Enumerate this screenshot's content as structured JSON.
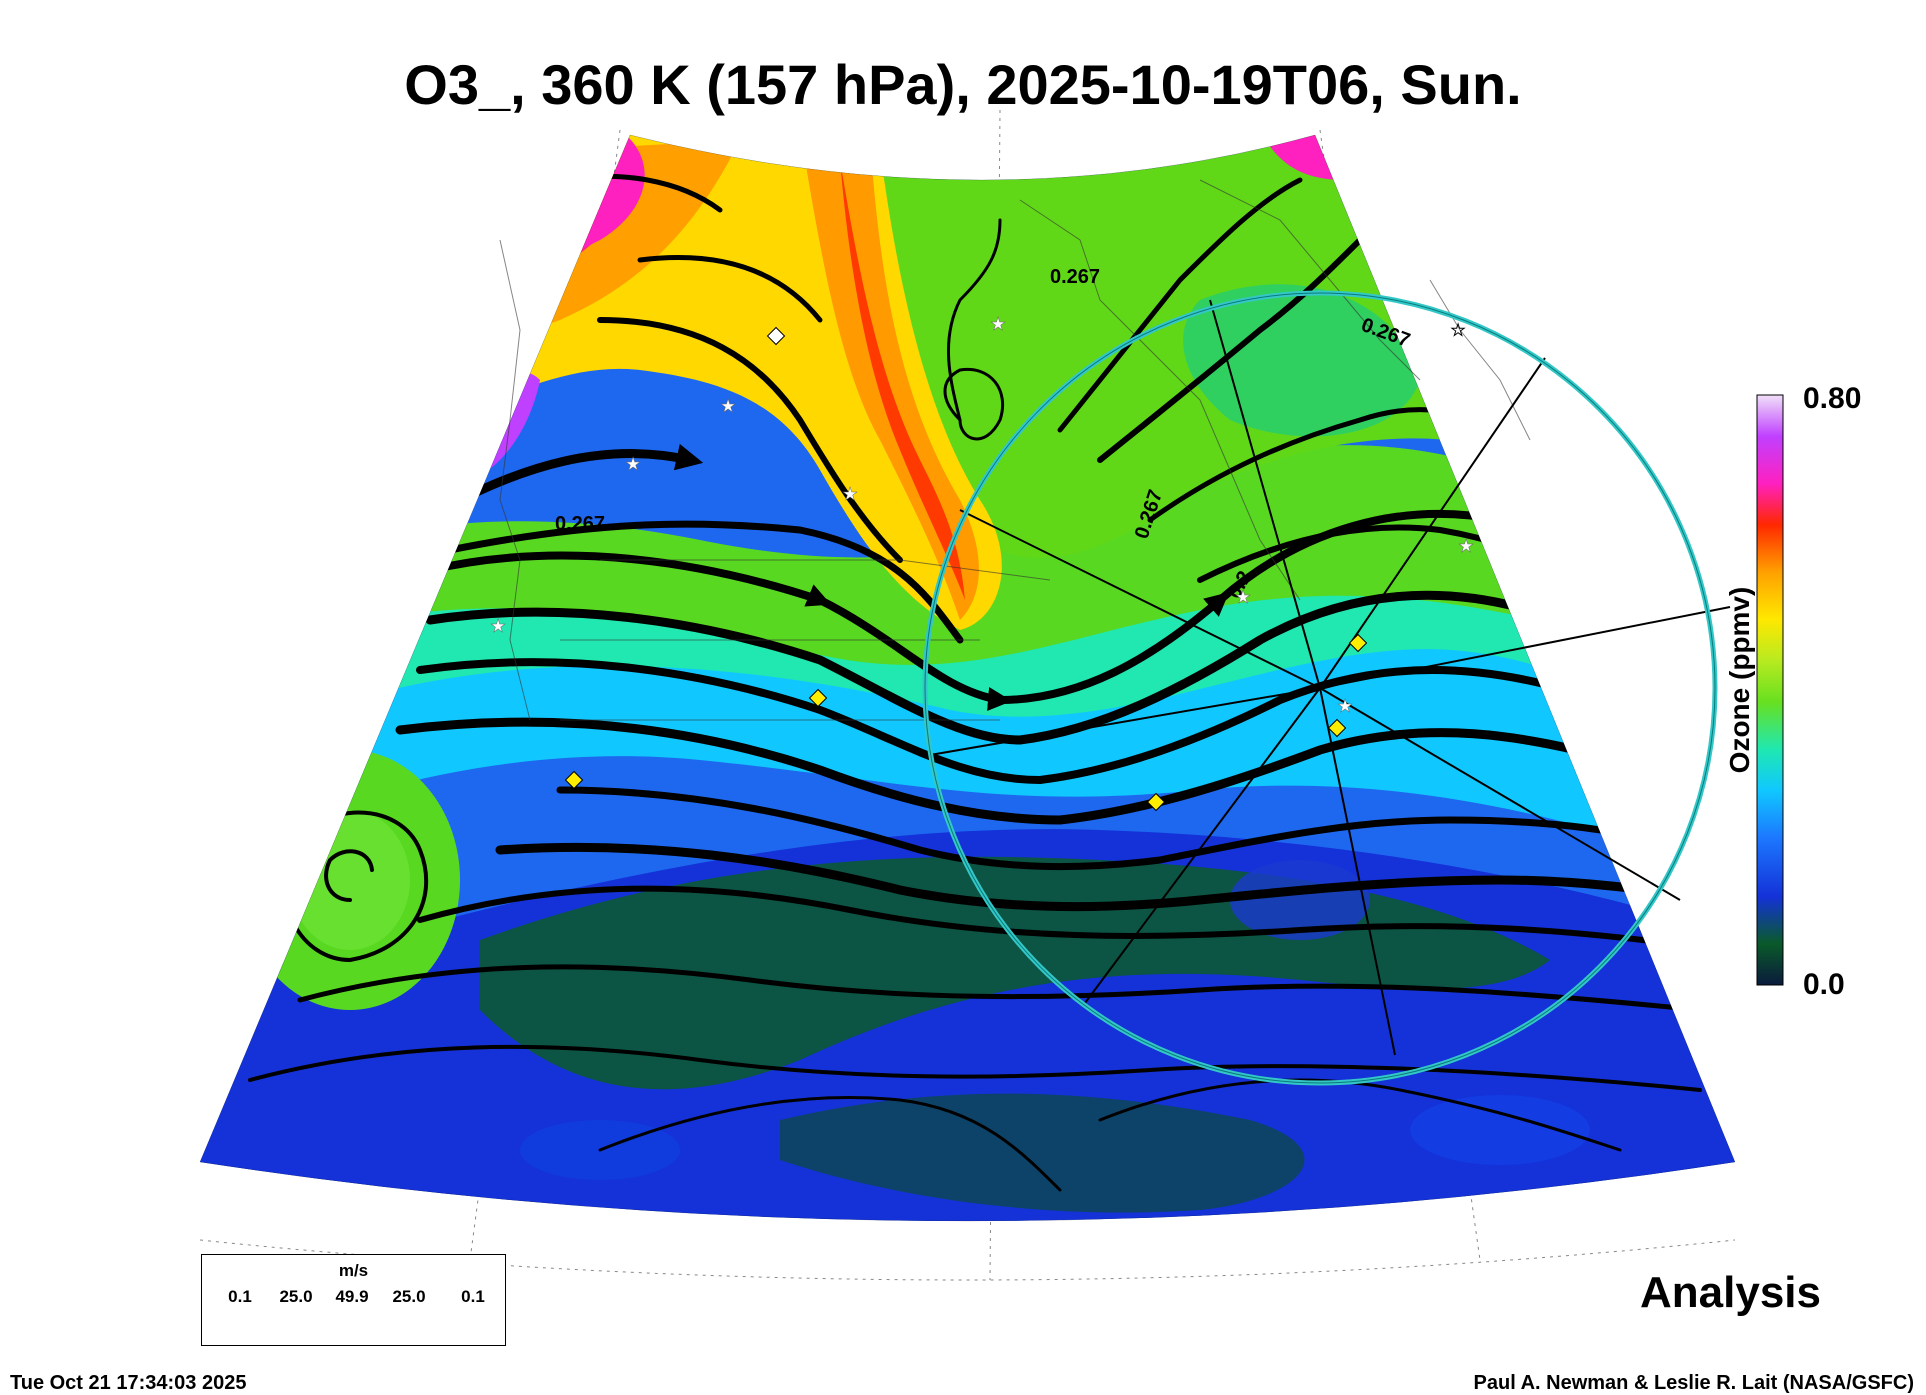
{
  "title": "O3_, 360 K (157 hPa), 2025-10-19T06, Sun.",
  "colorbar": {
    "max_label": "0.80",
    "min_label": "0.0",
    "title": "Ozone (ppmv)",
    "stops": [
      "#0a1a3c",
      "#0a5a2a",
      "#1432d8",
      "#1c78ff",
      "#10c8ff",
      "#20e8b0",
      "#68e020",
      "#b8ea20",
      "#ffe800",
      "#ffa000",
      "#ff2800",
      "#ff20c0",
      "#c040ff",
      "#f0e0f8"
    ]
  },
  "contour_labels": [
    "0.267",
    "0.267",
    "0.267",
    "0.2",
    "0.267"
  ],
  "wind_scale": {
    "unit": "m/s",
    "ticks": [
      "0.1",
      "25.0",
      "49.9",
      "25.0",
      "0.1"
    ]
  },
  "analysis_label": "Analysis",
  "footer": {
    "timestamp": "Tue Oct 21 17:34:03 2025",
    "credit": "Paul A. Newman & Leslie R. Lait (NASA/GSFC)"
  },
  "palette": {
    "ring": "#33c7c7",
    "marker": "#ffee00"
  }
}
